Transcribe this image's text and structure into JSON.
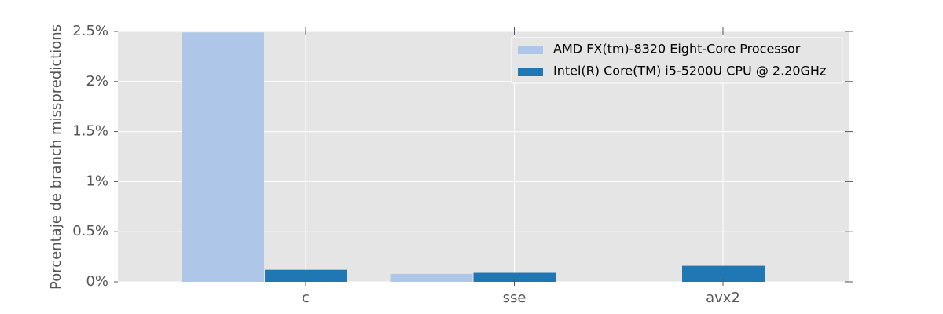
{
  "chart_data": {
    "type": "bar",
    "y_label": "Porcentaje de branch misspredictions",
    "categories": [
      "c",
      "sse",
      "avx2"
    ],
    "series": [
      {
        "name": "AMD FX(tm)-8320 Eight-Core Processor",
        "color": "#aec7e8",
        "values": [
          2.49,
          0.08,
          0
        ]
      },
      {
        "name": "Intel(R) Core(TM) i5-5200U CPU @ 2.20GHz",
        "color": "#1f77b4",
        "values": [
          0.12,
          0.09,
          0.16
        ]
      }
    ],
    "ylim": [
      0,
      2.5
    ],
    "yticks": [
      {
        "value": 0,
        "label": "0%"
      },
      {
        "value": 0.5,
        "label": "0.5%"
      },
      {
        "value": 1,
        "label": "1%"
      },
      {
        "value": 1.5,
        "label": "1.5%"
      },
      {
        "value": 2,
        "label": "2%"
      },
      {
        "value": 2.5,
        "label": "2.5%"
      }
    ],
    "grid": true,
    "legend": "upper right"
  }
}
